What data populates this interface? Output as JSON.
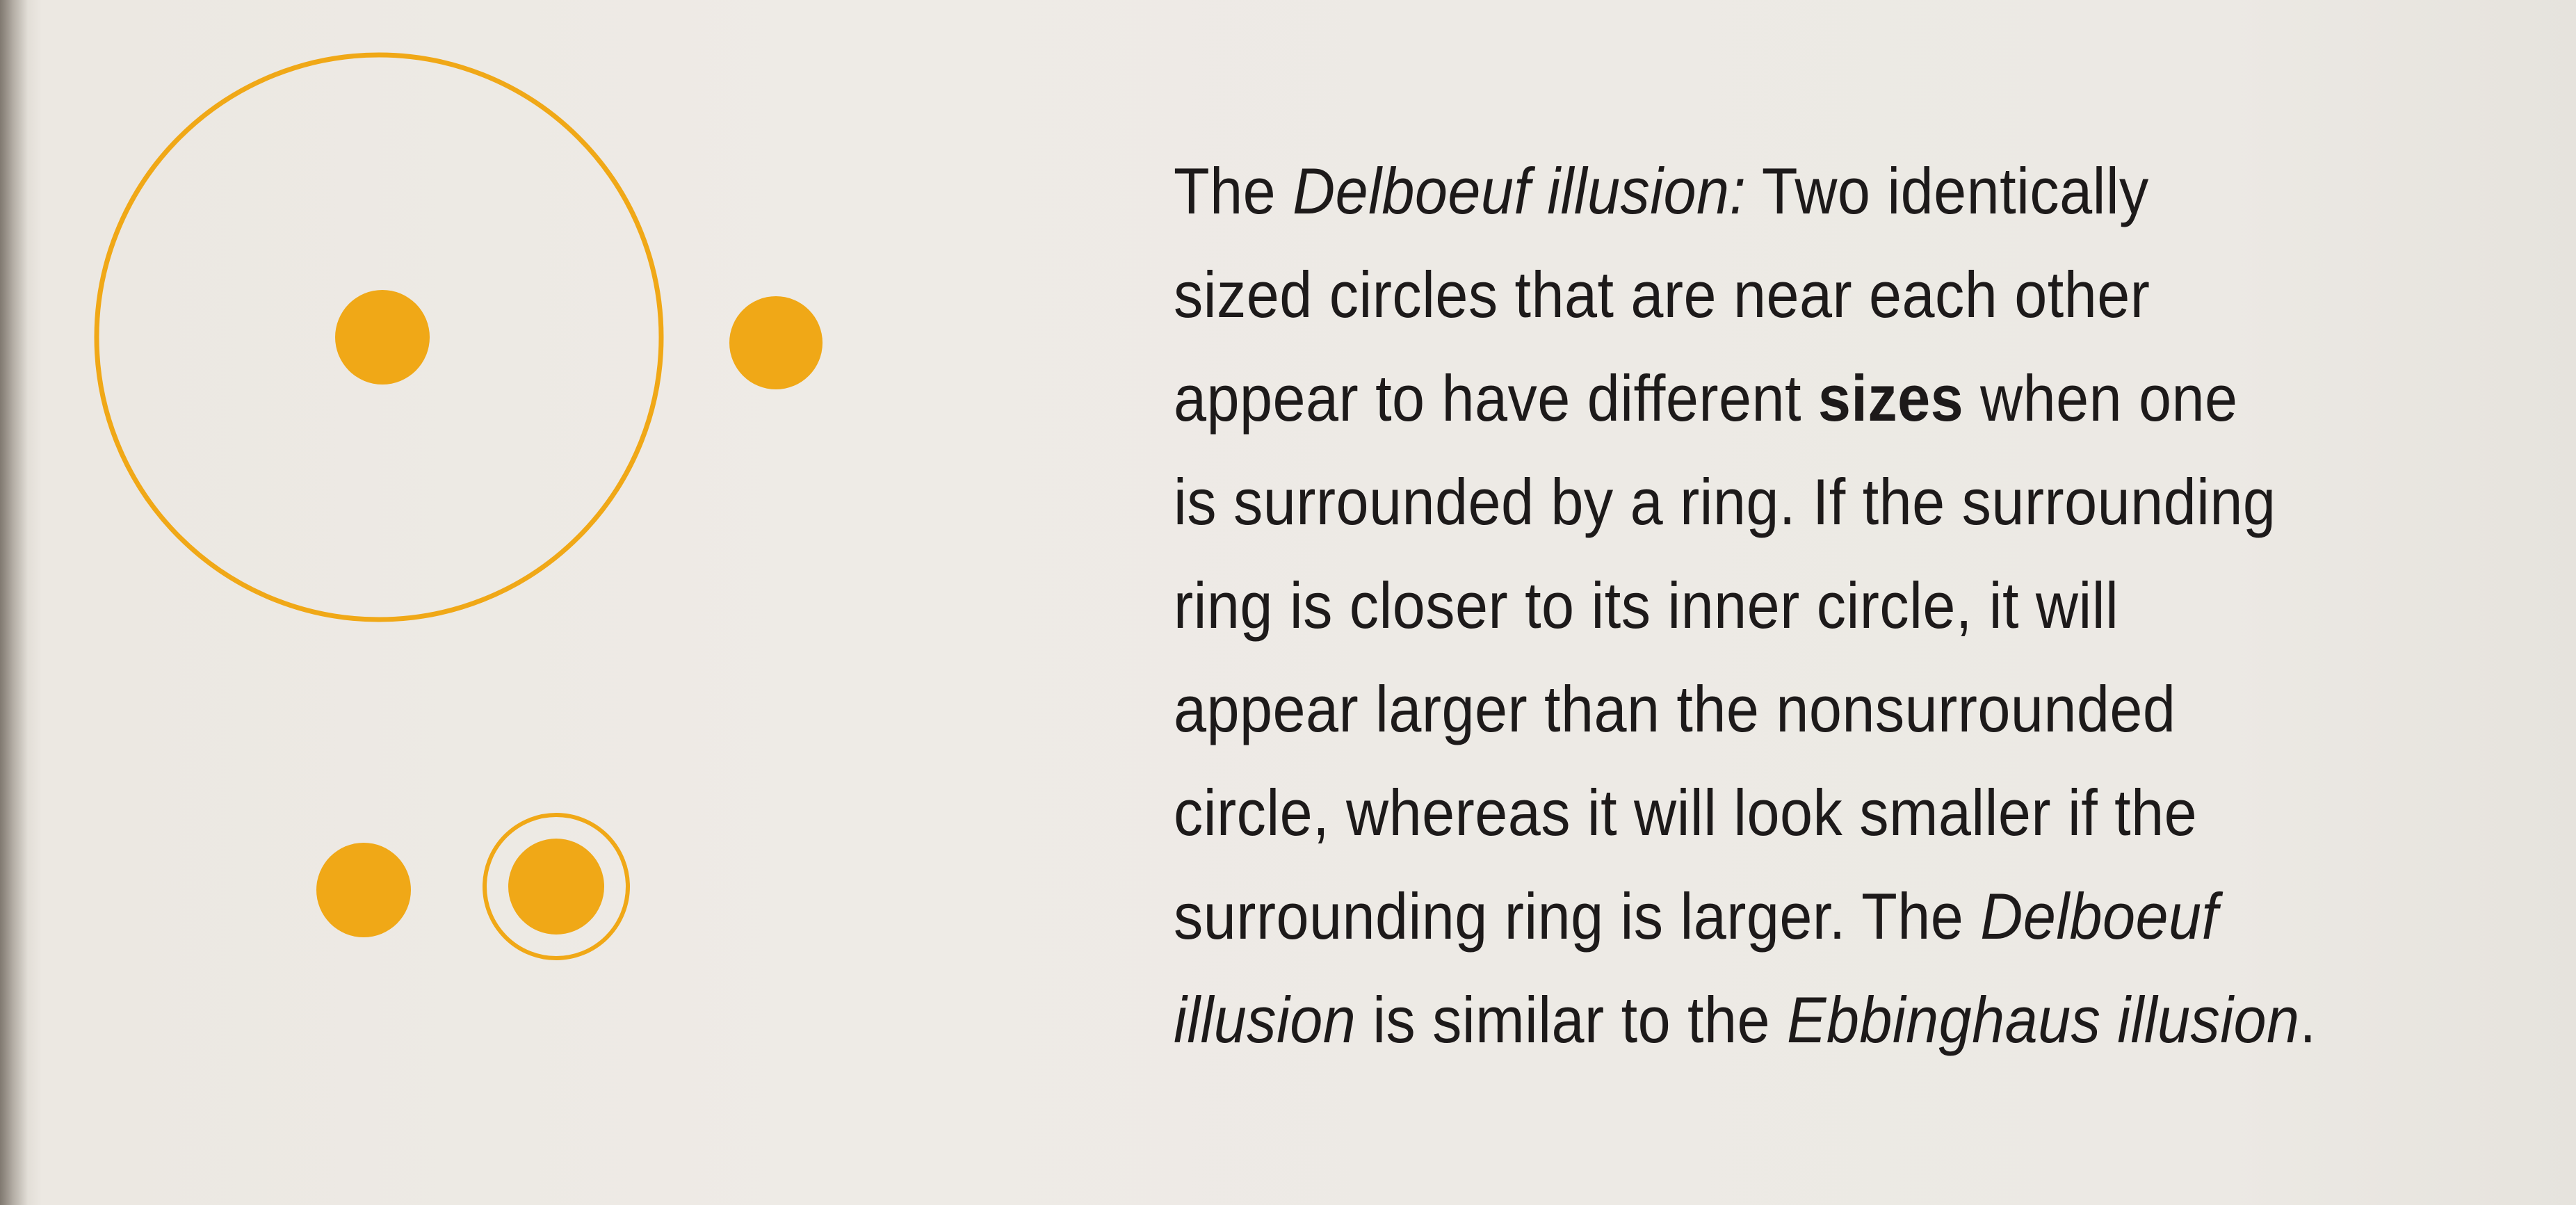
{
  "accent_color": "#f0a817",
  "figure": {
    "large_ring_description": "large ring around circle",
    "small_ring_description": "tight ring around circle"
  },
  "caption": {
    "line1": {
      "pre": "The ",
      "term": "Delboeuf illusion:",
      "post": " Two identically"
    },
    "line2": "sized circles that are near each other",
    "line3": {
      "pre": "appear to have different ",
      "bold": "sizes",
      "post": " when one"
    },
    "line4": "is surrounded by a ring. If the surrounding",
    "line5": "ring is closer to its inner circle, it will",
    "line6": "appear larger than the nonsurrounded",
    "line7": "circle, whereas it will look smaller if the",
    "line8": {
      "pre": "surrounding ring is larger. The ",
      "term": "Delboeuf"
    },
    "line9": {
      "term": "illusion",
      "mid": " is similar to the ",
      "term2": "Ebbinghaus illusion",
      "post": "."
    }
  }
}
